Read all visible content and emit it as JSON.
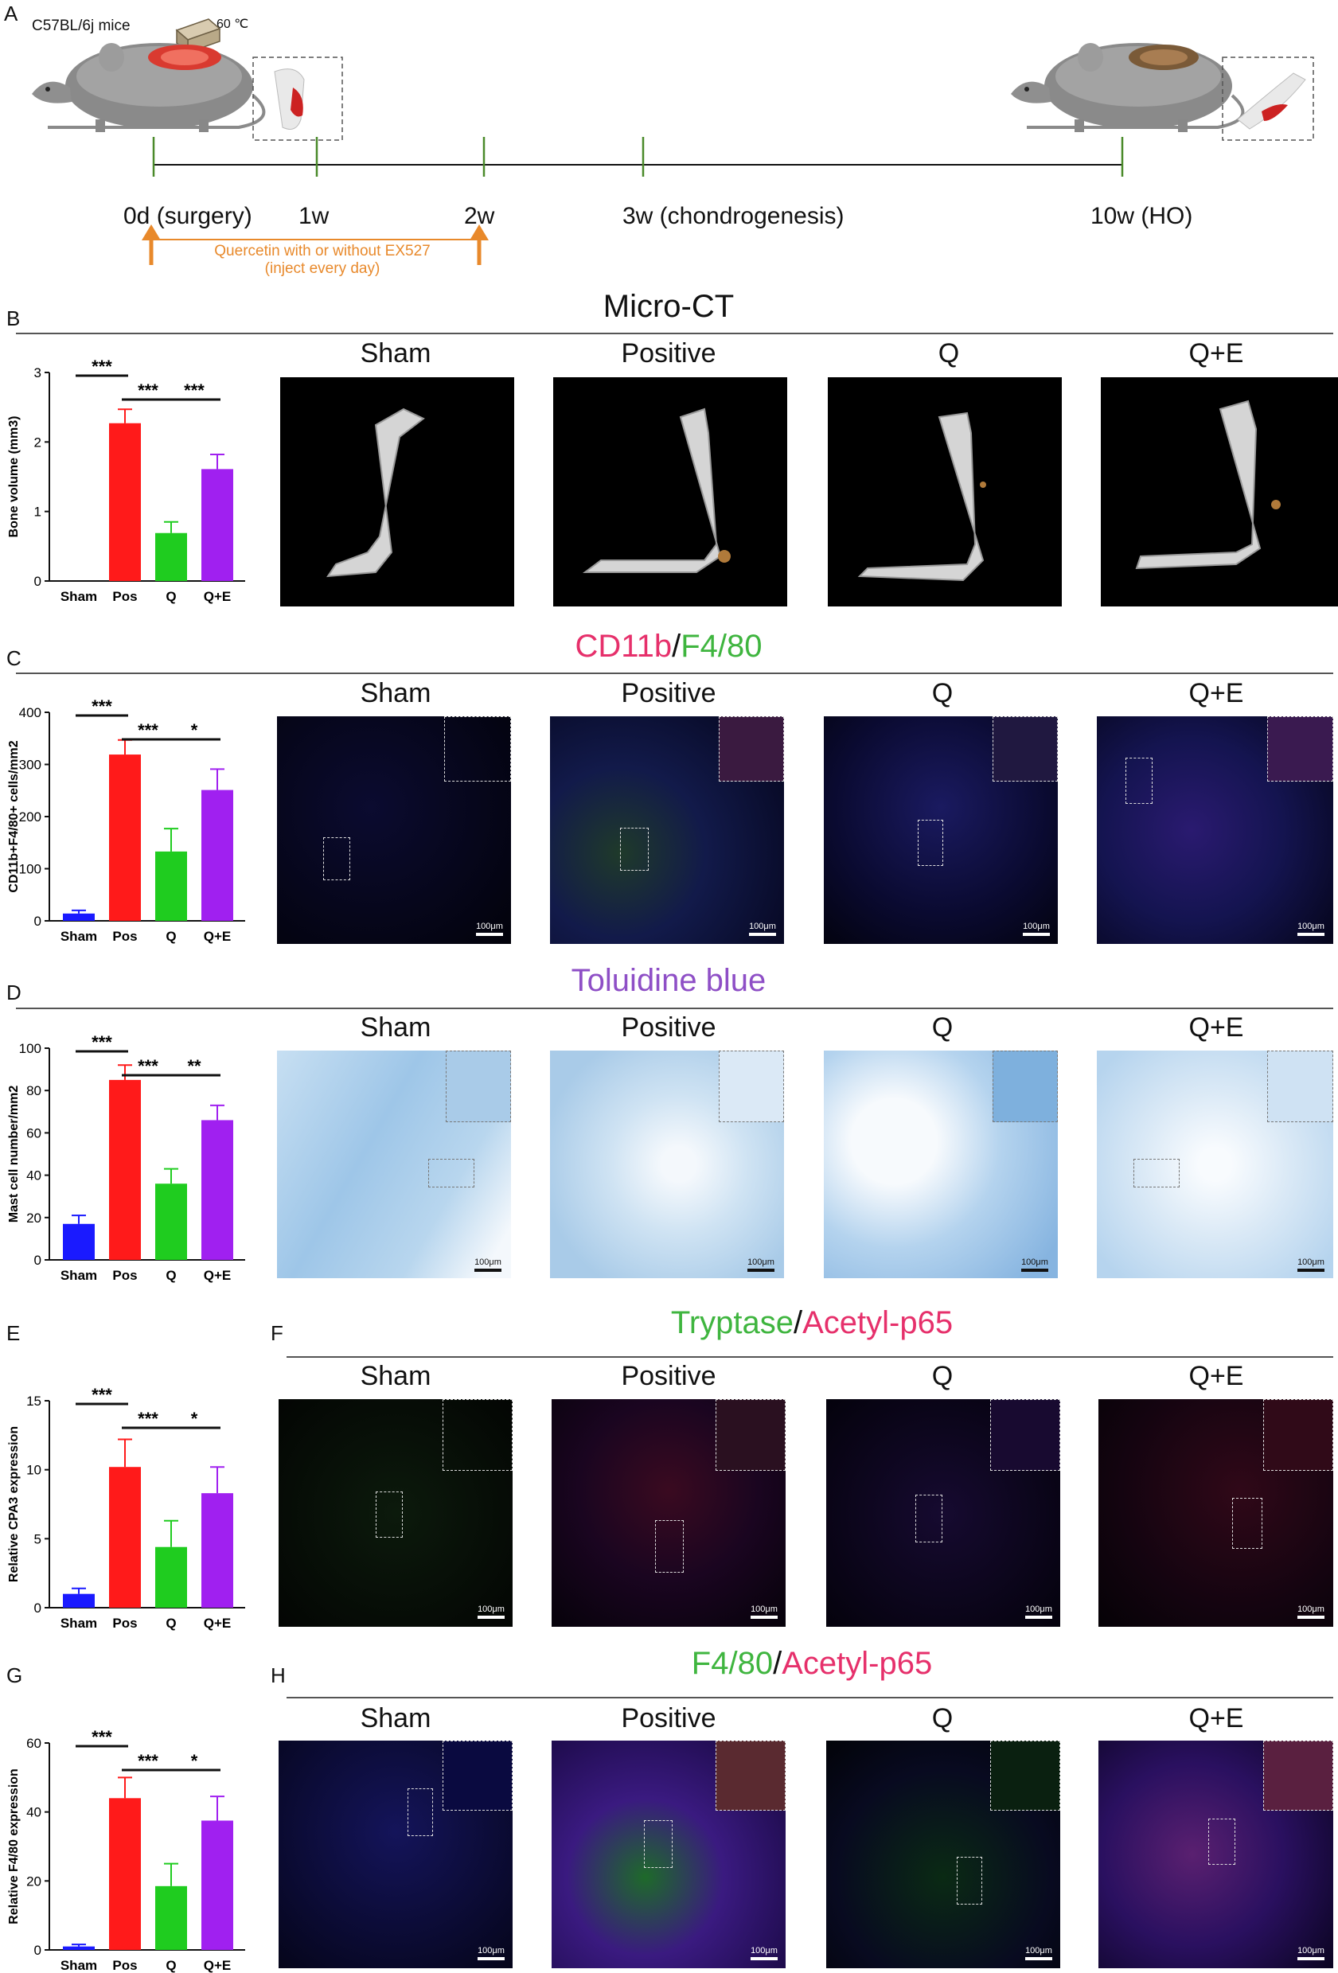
{
  "panel_labels": {
    "a": "A",
    "b": "B",
    "c": "C",
    "d": "D",
    "e": "E",
    "f": "F",
    "g": "G",
    "h": "H"
  },
  "timeline": {
    "mouse_label": "C57BL/6j mice",
    "temperature": "60 ℃",
    "points": [
      "0d (surgery)",
      "1w",
      "2w",
      "3w (chondrogenesis)",
      "10w (HO)"
    ],
    "treatment_line1": "Quercetin with or without EX527",
    "treatment_line2": "(inject every day)"
  },
  "colors": {
    "sham": "#1a1aff",
    "pos": "#ff1a1a",
    "q": "#1fcc1f",
    "qe": "#a020f0",
    "orange": "#e8892b",
    "timeline_green": "#4a8a2a",
    "magenta": "#e6306b",
    "green": "#3fb53f",
    "purple": "#8e4fc6"
  },
  "sections": {
    "micro_ct": "Micro-CT",
    "cd11b_a": "CD11b",
    "cd11b_sep": "/",
    "cd11b_b": "F4/80",
    "toluidine": "Toluidine blue",
    "tryp_a": "Tryptase",
    "tryp_sep": "/",
    "tryp_b": "Acetyl-p65",
    "f480_a": "F4/80",
    "f480_sep": "/",
    "f480_b": "Acetyl-p65"
  },
  "group_headers": [
    "Sham",
    "Positive",
    "Q",
    "Q+E"
  ],
  "scale_label": "100μm",
  "chart_data": [
    {
      "type": "bar",
      "panel": "B",
      "ylabel": "Bone volume (mm3)",
      "categories": [
        "Sham",
        "Pos",
        "Q",
        "Q+E"
      ],
      "values": [
        0,
        2.27,
        0.69,
        1.61
      ],
      "errors": [
        0,
        0.2,
        0.16,
        0.21
      ],
      "ylim": [
        0,
        3
      ],
      "yticks": [
        "0",
        "1",
        "2",
        "3"
      ],
      "sig": [
        "***",
        "***",
        "***"
      ]
    },
    {
      "type": "bar",
      "panel": "C",
      "ylabel": "CD11b+F4/80+ cells/mm2",
      "categories": [
        "Sham",
        "Pos",
        "Q",
        "Q+E"
      ],
      "values": [
        14,
        319,
        133,
        251
      ],
      "errors": [
        6,
        28,
        44,
        40
      ],
      "ylim": [
        0,
        400
      ],
      "yticks": [
        "0",
        "100",
        "200",
        "300",
        "400"
      ],
      "sig": [
        "***",
        "***",
        "*"
      ]
    },
    {
      "type": "bar",
      "panel": "D",
      "ylabel": "Mast cell number/mm2",
      "categories": [
        "Sham",
        "Pos",
        "Q",
        "Q+E"
      ],
      "values": [
        17,
        85,
        36,
        66
      ],
      "errors": [
        4,
        7,
        7,
        7
      ],
      "ylim": [
        0,
        100
      ],
      "yticks": [
        "0",
        "20",
        "40",
        "60",
        "80",
        "100"
      ],
      "sig": [
        "***",
        "***",
        "**"
      ]
    },
    {
      "type": "bar",
      "panel": "E",
      "ylabel": "Relative CPA3 expression",
      "categories": [
        "Sham",
        "Pos",
        "Q",
        "Q+E"
      ],
      "values": [
        1.0,
        10.2,
        4.4,
        8.3
      ],
      "errors": [
        0.4,
        2.0,
        1.9,
        1.9
      ],
      "ylim": [
        0,
        15
      ],
      "yticks": [
        "0",
        "5",
        "10",
        "15"
      ],
      "sig": [
        "***",
        "***",
        "*"
      ]
    },
    {
      "type": "bar",
      "panel": "G",
      "ylabel": "Relative F4/80 expression",
      "categories": [
        "Sham",
        "Pos",
        "Q",
        "Q+E"
      ],
      "values": [
        1.0,
        44,
        18.5,
        37.5
      ],
      "errors": [
        0.6,
        6,
        6.5,
        7
      ],
      "ylim": [
        0,
        60
      ],
      "yticks": [
        "0",
        "20",
        "40",
        "60"
      ],
      "sig": [
        "***",
        "***",
        "*"
      ]
    }
  ]
}
